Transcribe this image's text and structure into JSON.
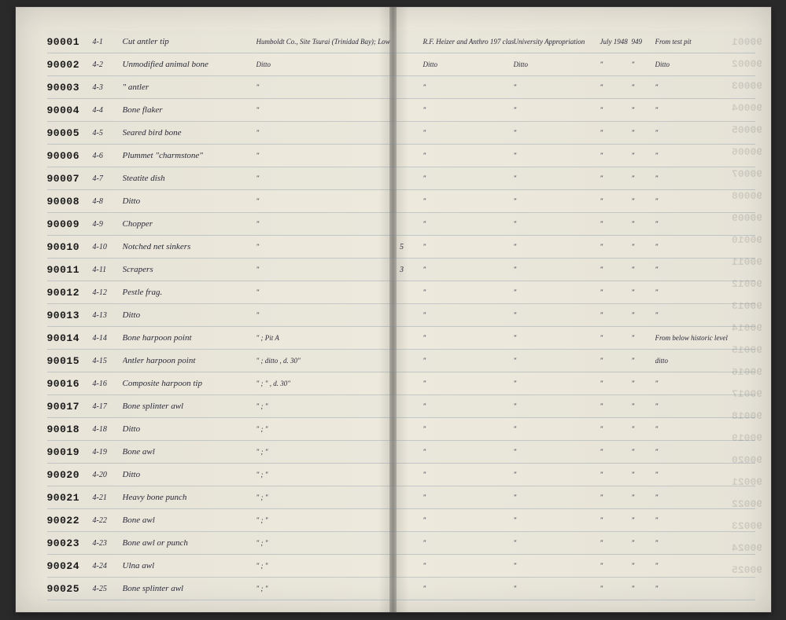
{
  "page": {
    "background_color": "#2a2a2a",
    "paper_color": "#e8e4d8",
    "line_color": "rgba(120,140,160,0.35)"
  },
  "rows": [
    {
      "catalog": "90001",
      "field": "4-1",
      "desc": "Cut antler tip",
      "loc": "Humboldt Co., Site Tsurai (Trinidad Bay); Lowest Terrace",
      "qty": "",
      "collector": "R.F. Heizer and Anthro 197 class",
      "fund": "University Appropriation",
      "date1": "July 1948",
      "date2": "949",
      "remarks": "From test pit"
    },
    {
      "catalog": "90002",
      "field": "4-2",
      "desc": "Unmodified animal bone",
      "loc": "Ditto",
      "qty": "",
      "collector": "Ditto",
      "fund": "Ditto",
      "date1": "\"",
      "date2": "\"",
      "remarks": "Ditto"
    },
    {
      "catalog": "90003",
      "field": "4-3",
      "desc": "\"    antler",
      "loc": "\"",
      "qty": "",
      "collector": "\"",
      "fund": "\"",
      "date1": "\"",
      "date2": "\"",
      "remarks": "\""
    },
    {
      "catalog": "90004",
      "field": "4-4",
      "desc": "Bone flaker",
      "loc": "\"",
      "qty": "",
      "collector": "\"",
      "fund": "\"",
      "date1": "\"",
      "date2": "\"",
      "remarks": "\""
    },
    {
      "catalog": "90005",
      "field": "4-5",
      "desc": "Seared bird bone",
      "loc": "\"",
      "qty": "",
      "collector": "\"",
      "fund": "\"",
      "date1": "\"",
      "date2": "\"",
      "remarks": "\""
    },
    {
      "catalog": "90006",
      "field": "4-6",
      "desc": "Plummet \"charmstone\"",
      "loc": "\"",
      "qty": "",
      "collector": "\"",
      "fund": "\"",
      "date1": "\"",
      "date2": "\"",
      "remarks": "\""
    },
    {
      "catalog": "90007",
      "field": "4-7",
      "desc": "Steatite dish",
      "loc": "\"",
      "qty": "",
      "collector": "\"",
      "fund": "\"",
      "date1": "\"",
      "date2": "\"",
      "remarks": "\""
    },
    {
      "catalog": "90008",
      "field": "4-8",
      "desc": "Ditto",
      "loc": "\"",
      "qty": "",
      "collector": "\"",
      "fund": "\"",
      "date1": "\"",
      "date2": "\"",
      "remarks": "\""
    },
    {
      "catalog": "90009",
      "field": "4-9",
      "desc": "Chopper",
      "loc": "\"",
      "qty": "",
      "collector": "\"",
      "fund": "\"",
      "date1": "\"",
      "date2": "\"",
      "remarks": "\""
    },
    {
      "catalog": "90010",
      "field": "4-10",
      "desc": "Notched net sinkers",
      "loc": "\"",
      "qty": "5",
      "collector": "\"",
      "fund": "\"",
      "date1": "\"",
      "date2": "\"",
      "remarks": "\""
    },
    {
      "catalog": "90011",
      "field": "4-11",
      "desc": "Scrapers",
      "loc": "\"",
      "qty": "3",
      "collector": "\"",
      "fund": "\"",
      "date1": "\"",
      "date2": "\"",
      "remarks": "\""
    },
    {
      "catalog": "90012",
      "field": "4-12",
      "desc": "Pestle frag.",
      "loc": "\"",
      "qty": "",
      "collector": "\"",
      "fund": "\"",
      "date1": "\"",
      "date2": "\"",
      "remarks": "\""
    },
    {
      "catalog": "90013",
      "field": "4-13",
      "desc": "Ditto",
      "loc": "\"",
      "qty": "",
      "collector": "\"",
      "fund": "\"",
      "date1": "\"",
      "date2": "\"",
      "remarks": "\""
    },
    {
      "catalog": "90014",
      "field": "4-14",
      "desc": "Bone harpoon point",
      "loc": "\" ; Pit A",
      "qty": "",
      "collector": "\"",
      "fund": "\"",
      "date1": "\"",
      "date2": "\"",
      "remarks": "From below historic level"
    },
    {
      "catalog": "90015",
      "field": "4-15",
      "desc": "Antler harpoon point",
      "loc": "\" ; ditto , d. 30\"",
      "qty": "",
      "collector": "\"",
      "fund": "\"",
      "date1": "\"",
      "date2": "\"",
      "remarks": "ditto"
    },
    {
      "catalog": "90016",
      "field": "4-16",
      "desc": "Composite harpoon tip",
      "loc": "\" ;  \"  , d. 30\"",
      "qty": "",
      "collector": "\"",
      "fund": "\"",
      "date1": "\"",
      "date2": "\"",
      "remarks": "\""
    },
    {
      "catalog": "90017",
      "field": "4-17",
      "desc": "Bone splinter awl",
      "loc": "\" ;  \"",
      "qty": "",
      "collector": "\"",
      "fund": "\"",
      "date1": "\"",
      "date2": "\"",
      "remarks": "\""
    },
    {
      "catalog": "90018",
      "field": "4-18",
      "desc": "Ditto",
      "loc": "\" ;  \"",
      "qty": "",
      "collector": "\"",
      "fund": "\"",
      "date1": "\"",
      "date2": "\"",
      "remarks": "\""
    },
    {
      "catalog": "90019",
      "field": "4-19",
      "desc": "Bone awl",
      "loc": "\" ;  \"",
      "qty": "",
      "collector": "\"",
      "fund": "\"",
      "date1": "\"",
      "date2": "\"",
      "remarks": "\""
    },
    {
      "catalog": "90020",
      "field": "4-20",
      "desc": "Ditto",
      "loc": "\" ;  \"",
      "qty": "",
      "collector": "\"",
      "fund": "\"",
      "date1": "\"",
      "date2": "\"",
      "remarks": "\""
    },
    {
      "catalog": "90021",
      "field": "4-21",
      "desc": "Heavy bone punch",
      "loc": "\" ;  \"",
      "qty": "",
      "collector": "\"",
      "fund": "\"",
      "date1": "\"",
      "date2": "\"",
      "remarks": "\""
    },
    {
      "catalog": "90022",
      "field": "4-22",
      "desc": "Bone awl",
      "loc": "\" ;  \"",
      "qty": "",
      "collector": "\"",
      "fund": "\"",
      "date1": "\"",
      "date2": "\"",
      "remarks": "\""
    },
    {
      "catalog": "90023",
      "field": "4-23",
      "desc": "Bone awl or punch",
      "loc": "\" ;  \"",
      "qty": "",
      "collector": "\"",
      "fund": "\"",
      "date1": "\"",
      "date2": "\"",
      "remarks": "\""
    },
    {
      "catalog": "90024",
      "field": "4-24",
      "desc": "Ulna awl",
      "loc": "\" ;  \"",
      "qty": "",
      "collector": "\"",
      "fund": "\"",
      "date1": "\"",
      "date2": "\"",
      "remarks": "\""
    },
    {
      "catalog": "90025",
      "field": "4-25",
      "desc": "Bone splinter awl",
      "loc": "\" ;  \"",
      "qty": "",
      "collector": "\"",
      "fund": "\"",
      "date1": "\"",
      "date2": "\"",
      "remarks": "\""
    }
  ]
}
